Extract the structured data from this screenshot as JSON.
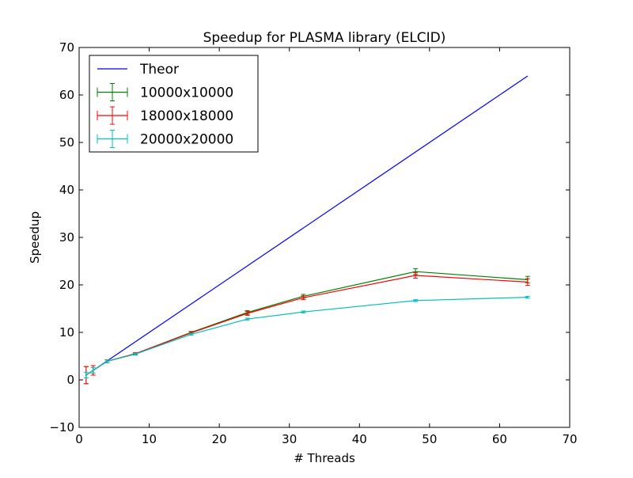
{
  "chart_data": {
    "type": "line",
    "title": "Speedup for PLASMA library (ELCID)",
    "xlabel": "# Threads",
    "ylabel": "Speedup",
    "xlim": [
      0,
      70
    ],
    "ylim": [
      -10,
      70
    ],
    "x_ticks": [
      0,
      10,
      20,
      30,
      40,
      50,
      60,
      70
    ],
    "y_ticks": [
      -10,
      0,
      10,
      20,
      30,
      40,
      50,
      60,
      70
    ],
    "grid": false,
    "legend_position": "top-left",
    "series": [
      {
        "name": "Theor",
        "color": "#0000ff",
        "errorbars": false,
        "points": [
          [
            1,
            1
          ],
          [
            64,
            64
          ]
        ]
      },
      {
        "name": "10000x10000",
        "color": "#008000",
        "errorbars": true,
        "points": [
          [
            1,
            1.0
          ],
          [
            2,
            2.0
          ],
          [
            4,
            3.9
          ],
          [
            8,
            5.5
          ],
          [
            16,
            10.0
          ],
          [
            24,
            14.2
          ],
          [
            32,
            17.6
          ],
          [
            48,
            22.8
          ],
          [
            64,
            21.1
          ]
        ],
        "errors": [
          1.8,
          1.0,
          0.3,
          0.2,
          0.2,
          0.4,
          0.4,
          0.6,
          0.7
        ]
      },
      {
        "name": "18000x18000",
        "color": "#ff0000",
        "errorbars": true,
        "points": [
          [
            1,
            1.0
          ],
          [
            2,
            2.0
          ],
          [
            4,
            3.9
          ],
          [
            8,
            5.5
          ],
          [
            16,
            9.9
          ],
          [
            24,
            14.0
          ],
          [
            32,
            17.3
          ],
          [
            48,
            22.0
          ],
          [
            64,
            20.6
          ]
        ],
        "errors": [
          1.8,
          1.0,
          0.3,
          0.2,
          0.2,
          0.4,
          0.4,
          0.6,
          0.7
        ]
      },
      {
        "name": "20000x20000",
        "color": "#00bfbf",
        "errorbars": true,
        "points": [
          [
            1,
            1.0
          ],
          [
            2,
            2.0
          ],
          [
            4,
            3.9
          ],
          [
            8,
            5.4
          ],
          [
            16,
            9.6
          ],
          [
            24,
            12.8
          ],
          [
            32,
            14.3
          ],
          [
            48,
            16.7
          ],
          [
            64,
            17.4
          ]
        ],
        "errors": [
          0.6,
          0.6,
          0.3,
          0.2,
          0.2,
          0.2,
          0.2,
          0.2,
          0.2
        ]
      }
    ]
  }
}
